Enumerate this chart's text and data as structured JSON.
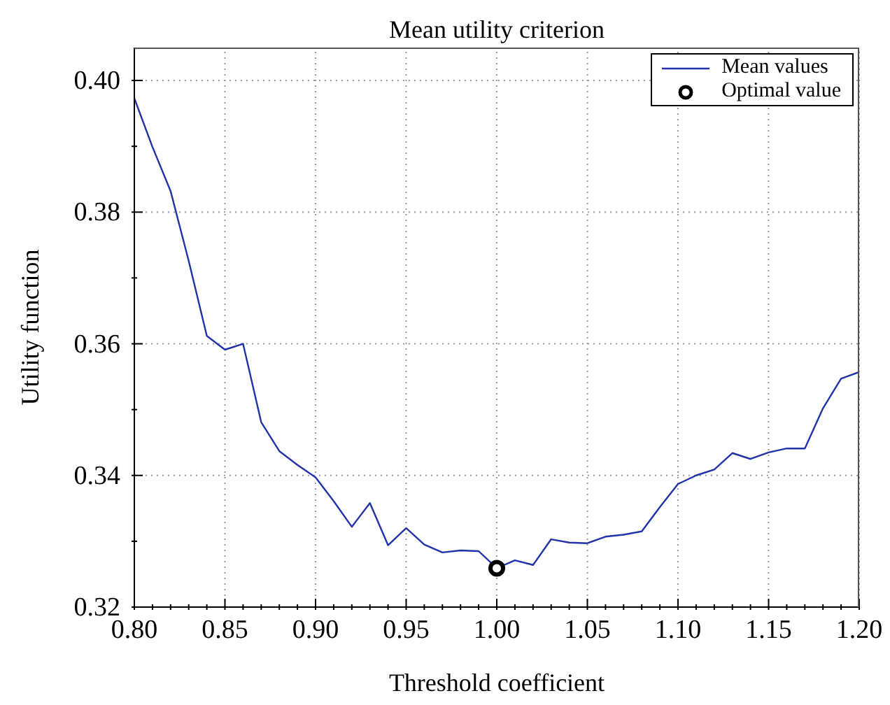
{
  "chart_data": {
    "type": "line",
    "title": "Mean utility criterion",
    "xlabel": "Threshold coefficient",
    "ylabel": "Utility function",
    "x": [
      0.8,
      0.81,
      0.82,
      0.83,
      0.84,
      0.85,
      0.86,
      0.87,
      0.88,
      0.89,
      0.9,
      0.91,
      0.92,
      0.93,
      0.94,
      0.95,
      0.96,
      0.97,
      0.98,
      0.99,
      1.0,
      1.01,
      1.02,
      1.03,
      1.04,
      1.05,
      1.06,
      1.07,
      1.08,
      1.09,
      1.1,
      1.11,
      1.12,
      1.13,
      1.14,
      1.15,
      1.16,
      1.17,
      1.18,
      1.19,
      1.2
    ],
    "series": [
      {
        "name": "Mean values",
        "type": "line",
        "color": "#2233aa",
        "marker": "none",
        "values": [
          0.3973,
          0.3899,
          0.3832,
          0.3726,
          0.3612,
          0.3591,
          0.36,
          0.3481,
          0.3437,
          0.3416,
          0.3397,
          0.3361,
          0.3322,
          0.3358,
          0.3294,
          0.332,
          0.3295,
          0.3283,
          0.3286,
          0.3285,
          0.3259,
          0.3271,
          0.3264,
          0.3303,
          0.3298,
          0.3297,
          0.3307,
          0.331,
          0.3315,
          0.3352,
          0.3387,
          0.34,
          0.3409,
          0.3434,
          0.3425,
          0.3435,
          0.3441,
          0.3441,
          0.3502,
          0.3547,
          0.3557
        ]
      },
      {
        "name": "Optimal value",
        "type": "scatter",
        "color": "#000000",
        "marker": "circle",
        "x": [
          1.0
        ],
        "values": [
          0.3259
        ]
      }
    ],
    "xlim": [
      0.8,
      1.2
    ],
    "xticks": [
      {
        "value": 0.8,
        "label": "0.80"
      },
      {
        "value": 0.81,
        "label": null
      },
      {
        "value": 0.82,
        "label": null
      },
      {
        "value": 0.83,
        "label": null
      },
      {
        "value": 0.84,
        "label": null
      },
      {
        "value": 0.85,
        "label": "0.85"
      },
      {
        "value": 0.86,
        "label": null
      },
      {
        "value": 0.87,
        "label": null
      },
      {
        "value": 0.88,
        "label": null
      },
      {
        "value": 0.89,
        "label": null
      },
      {
        "value": 0.9,
        "label": "0.90"
      },
      {
        "value": 0.91,
        "label": null
      },
      {
        "value": 0.92,
        "label": null
      },
      {
        "value": 0.93,
        "label": null
      },
      {
        "value": 0.94,
        "label": null
      },
      {
        "value": 0.95,
        "label": "0.95"
      },
      {
        "value": 0.96,
        "label": null
      },
      {
        "value": 0.97,
        "label": null
      },
      {
        "value": 0.98,
        "label": null
      },
      {
        "value": 0.99,
        "label": null
      },
      {
        "value": 1.0,
        "label": "1.00"
      },
      {
        "value": 1.01,
        "label": null
      },
      {
        "value": 1.02,
        "label": null
      },
      {
        "value": 1.03,
        "label": null
      },
      {
        "value": 1.04,
        "label": null
      },
      {
        "value": 1.05,
        "label": "1.05"
      },
      {
        "value": 1.06,
        "label": null
      },
      {
        "value": 1.07,
        "label": null
      },
      {
        "value": 1.08,
        "label": null
      },
      {
        "value": 1.09,
        "label": null
      },
      {
        "value": 1.1,
        "label": "1.10"
      },
      {
        "value": 1.11,
        "label": null
      },
      {
        "value": 1.12,
        "label": null
      },
      {
        "value": 1.13,
        "label": null
      },
      {
        "value": 1.14,
        "label": null
      },
      {
        "value": 1.15,
        "label": "1.15"
      },
      {
        "value": 1.16,
        "label": null
      },
      {
        "value": 1.17,
        "label": null
      },
      {
        "value": 1.18,
        "label": null
      },
      {
        "value": 1.19,
        "label": null
      },
      {
        "value": 1.2,
        "label": "1.20"
      }
    ],
    "ylim": [
      0.32,
      0.405
    ],
    "yticks": [
      {
        "value": 0.32,
        "label": "0.32"
      },
      {
        "value": 0.33,
        "label": null
      },
      {
        "value": 0.34,
        "label": "0.34"
      },
      {
        "value": 0.35,
        "label": null
      },
      {
        "value": 0.36,
        "label": "0.36"
      },
      {
        "value": 0.37,
        "label": null
      },
      {
        "value": 0.38,
        "label": "0.38"
      },
      {
        "value": 0.39,
        "label": null
      },
      {
        "value": 0.4,
        "label": "0.40"
      }
    ],
    "grid": true,
    "legend": "top right"
  }
}
